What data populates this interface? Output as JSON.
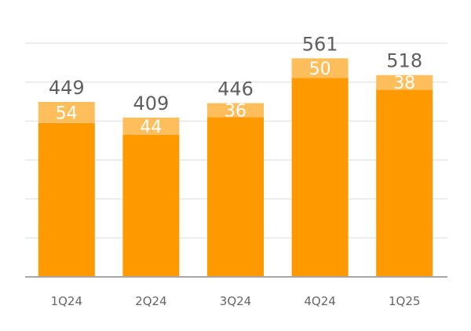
{
  "chart_data": {
    "type": "bar",
    "stacked": true,
    "categories": [
      "1Q24",
      "2Q24",
      "3Q24",
      "4Q24",
      "1Q25"
    ],
    "totals": [
      449,
      409,
      446,
      561,
      518
    ],
    "series": [
      {
        "values": [
          395,
          365,
          410,
          511,
          480
        ],
        "color": "#FF9900"
      },
      {
        "values": [
          54,
          44,
          36,
          50,
          38
        ],
        "color": "#FFBE5C"
      }
    ],
    "ylim": [
      0,
      600
    ],
    "grid": true,
    "legend": "none",
    "title": "",
    "xlabel": "",
    "ylabel": ""
  }
}
